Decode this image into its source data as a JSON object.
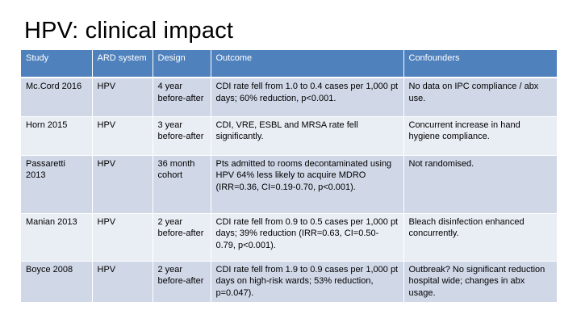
{
  "slide": {
    "title": "HPV: clinical impact"
  },
  "table": {
    "columns": [
      "Study",
      "ARD system",
      "Design",
      "Outcome",
      "Confounders"
    ],
    "rows": [
      [
        "Mc.Cord 2016",
        "HPV",
        "4 year before-after",
        "CDI rate fell from 1.0 to 0.4 cases per 1,000 pt days; 60% reduction, p<0.001.",
        "No data on IPC compliance / abx use."
      ],
      [
        "Horn 2015",
        "HPV",
        "3 year before-after",
        "CDI, VRE, ESBL and MRSA rate fell significantly.",
        "Concurrent increase in hand hygiene compliance."
      ],
      [
        "Passaretti 2013",
        "HPV",
        "36 month cohort",
        "Pts admitted to rooms decontaminated using HPV 64% less likely to acquire MDRO (IRR=0.36, CI=0.19-0.70, p<0.001).",
        "Not randomised."
      ],
      [
        "Manian 2013",
        "HPV",
        "2 year before-after",
        "CDI rate fell from 0.9 to 0.5 cases per 1,000 pt days; 39% reduction (IRR=0.63, CI=0.50-0.79, p<0.001).",
        "Bleach disinfection enhanced concurrently."
      ],
      [
        "Boyce 2008",
        "HPV",
        "2 year before-after",
        "CDI rate fell from 1.9 to 0.9 cases per 1,000 pt days on high-risk wards; 53% reduction, p=0.047).",
        "Outbreak? No significant reduction hospital wide; changes in abx usage."
      ]
    ]
  }
}
